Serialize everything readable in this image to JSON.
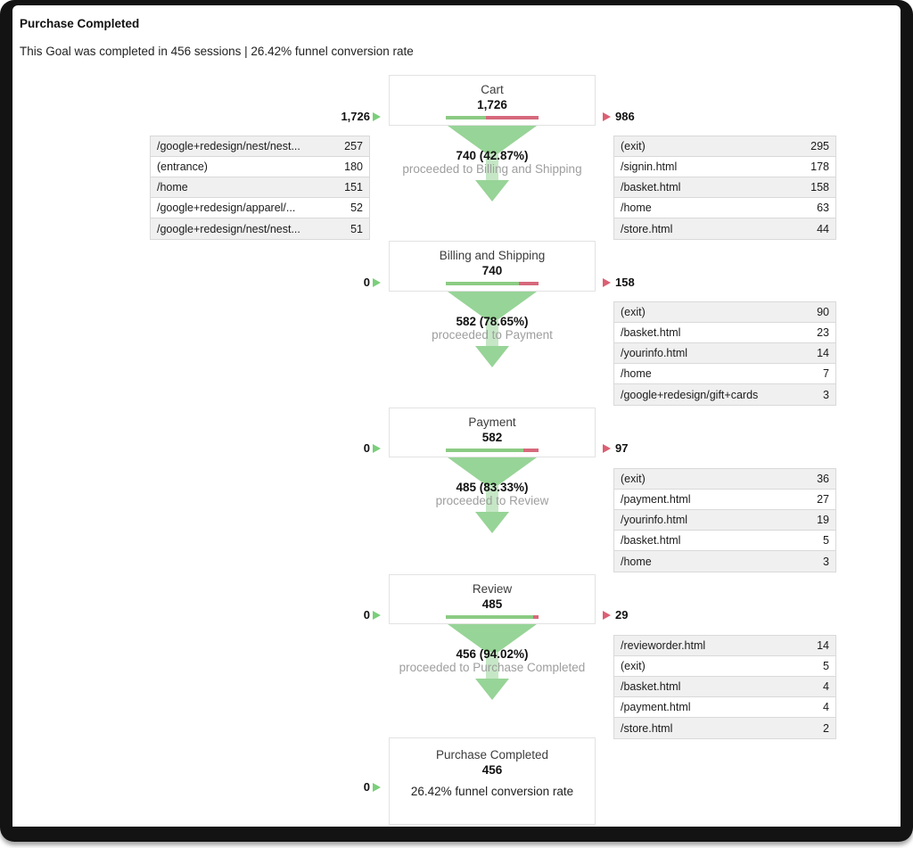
{
  "header": {
    "title": "Purchase Completed",
    "subtitle": "This Goal was completed in 456 sessions | 26.42% funnel conversion rate"
  },
  "colors": {
    "funnel_green": "#97D497",
    "bar_green": "#8BCB83",
    "bar_red": "#D6697C",
    "in_arrow_green": "#7ACF7A",
    "out_arrow_red": "#DC5F73",
    "muted_text": "#9E9E9E",
    "row_alt_bg": "#F0F0F0",
    "table_border": "#D9D9D9",
    "box_border": "#E2E2E2",
    "frame_black": "#131313"
  },
  "chart_data": {
    "type": "funnel",
    "title": "Purchase Completed",
    "subtitle": "This Goal was completed in 456 sessions | 26.42% funnel conversion rate",
    "goal_completions": 456,
    "funnel_conversion_rate_pct": 26.42,
    "steps": [
      {
        "name": "Cart",
        "sessions": 1726,
        "count_label": "1,726",
        "inflow_label": "1,726",
        "outflow_label": "986",
        "proceeded": 740,
        "proceeded_pct": 42.87,
        "connector_bold": "740 (42.87%)",
        "connector_gray": "proceeded to Billing and Shipping",
        "bar_green_pct": 42.87,
        "entrances": [
          {
            "label": "/google+redesign/nest/nest...",
            "value": "257"
          },
          {
            "label": "(entrance)",
            "value": "180"
          },
          {
            "label": "/home",
            "value": "151"
          },
          {
            "label": "/google+redesign/apparel/...",
            "value": "52"
          },
          {
            "label": "/google+redesign/nest/nest...",
            "value": "51"
          }
        ],
        "exits": [
          {
            "label": "(exit)",
            "value": "295"
          },
          {
            "label": "/signin.html",
            "value": "178"
          },
          {
            "label": "/basket.html",
            "value": "158"
          },
          {
            "label": "/home",
            "value": "63"
          },
          {
            "label": "/store.html",
            "value": "44"
          }
        ]
      },
      {
        "name": "Billing and Shipping",
        "sessions": 740,
        "count_label": "740",
        "inflow_label": "0",
        "outflow_label": "158",
        "proceeded": 582,
        "proceeded_pct": 78.65,
        "connector_bold": "582 (78.65%)",
        "connector_gray": "proceeded to Payment",
        "bar_green_pct": 78.65,
        "exits": [
          {
            "label": "(exit)",
            "value": "90"
          },
          {
            "label": "/basket.html",
            "value": "23"
          },
          {
            "label": "/yourinfo.html",
            "value": "14"
          },
          {
            "label": "/home",
            "value": "7"
          },
          {
            "label": "/google+redesign/gift+cards",
            "value": "3"
          }
        ]
      },
      {
        "name": "Payment",
        "sessions": 582,
        "count_label": "582",
        "inflow_label": "0",
        "outflow_label": "97",
        "proceeded": 485,
        "proceeded_pct": 83.33,
        "connector_bold": "485 (83.33%)",
        "connector_gray": "proceeded to Review",
        "bar_green_pct": 83.33,
        "exits": [
          {
            "label": "(exit)",
            "value": "36"
          },
          {
            "label": "/payment.html",
            "value": "27"
          },
          {
            "label": "/yourinfo.html",
            "value": "19"
          },
          {
            "label": "/basket.html",
            "value": "5"
          },
          {
            "label": "/home",
            "value": "3"
          }
        ]
      },
      {
        "name": "Review",
        "sessions": 485,
        "count_label": "485",
        "inflow_label": "0",
        "outflow_label": "29",
        "proceeded": 456,
        "proceeded_pct": 94.02,
        "connector_bold": "456 (94.02%)",
        "connector_gray": "proceeded to Purchase Completed",
        "bar_green_pct": 94.02,
        "exits": [
          {
            "label": "/revieworder.html",
            "value": "14"
          },
          {
            "label": "(exit)",
            "value": "5"
          },
          {
            "label": "/basket.html",
            "value": "4"
          },
          {
            "label": "/payment.html",
            "value": "4"
          },
          {
            "label": "/store.html",
            "value": "2"
          }
        ]
      },
      {
        "name": "Purchase Completed",
        "sessions": 456,
        "count_label": "456",
        "inflow_label": "0",
        "note": "26.42% funnel conversion rate"
      }
    ]
  }
}
